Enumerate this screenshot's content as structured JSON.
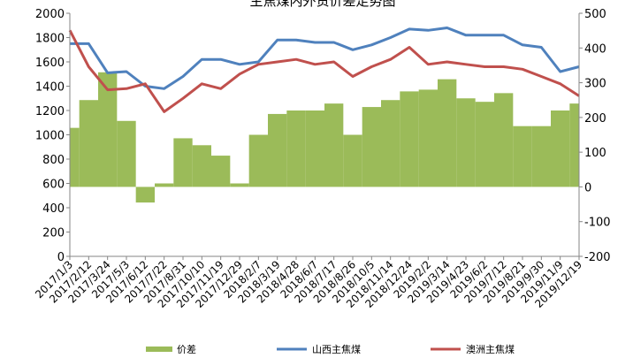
{
  "chart_data": {
    "type": "bar+line",
    "title": "主焦煤内外贸价差走势图",
    "x": [
      "2017/1/3",
      "2017/2/12",
      "2017/3/24",
      "2017/5/3",
      "2017/6/12",
      "2017/7/22",
      "2017/8/31",
      "2017/10/10",
      "2017/11/19",
      "2017/12/29",
      "2018/2/7",
      "2018/3/19",
      "2018/4/28",
      "2018/6/7",
      "2018/7/17",
      "2018/8/26",
      "2018/10/5",
      "2018/11/14",
      "2018/12/24",
      "2019/2/2",
      "2019/3/14",
      "2019/4/23",
      "2019/6/2",
      "2019/7/12",
      "2019/8/21",
      "2019/9/30",
      "2019/11/9",
      "2019/12/19"
    ],
    "y_left_lim": [
      0,
      2000
    ],
    "y_left_ticks": [
      "0",
      "200",
      "400",
      "600",
      "800",
      "1000",
      "1200",
      "1400",
      "1600",
      "1800",
      "2000"
    ],
    "y_right_lim": [
      -200,
      500
    ],
    "y_right_ticks": [
      "-200",
      "-100",
      "0",
      "100",
      "200",
      "300",
      "400",
      "500"
    ],
    "grid": false,
    "legend_position": "bottom",
    "colors": {
      "diff": "#9bbb59",
      "shanxi": "#4f81bd",
      "aus": "#c0504d"
    },
    "series": [
      {
        "name": "价差",
        "axis": "right",
        "kind": "bar",
        "values": [
          170,
          250,
          330,
          190,
          -45,
          10,
          140,
          120,
          90,
          10,
          150,
          210,
          220,
          220,
          240,
          150,
          230,
          250,
          275,
          280,
          310,
          255,
          245,
          270,
          175,
          175,
          220,
          240
        ]
      },
      {
        "name": "山西主焦煤",
        "axis": "left",
        "kind": "line",
        "values": [
          1750,
          1750,
          1510,
          1520,
          1400,
          1380,
          1480,
          1620,
          1620,
          1580,
          1600,
          1780,
          1780,
          1760,
          1760,
          1700,
          1740,
          1800,
          1870,
          1860,
          1880,
          1820,
          1820,
          1820,
          1740,
          1720,
          1520,
          1560
        ]
      },
      {
        "name": "澳洲主焦煤",
        "axis": "left",
        "kind": "line",
        "values": [
          1860,
          1560,
          1370,
          1380,
          1420,
          1190,
          1300,
          1420,
          1380,
          1500,
          1580,
          1600,
          1620,
          1580,
          1600,
          1480,
          1560,
          1620,
          1720,
          1580,
          1600,
          1580,
          1560,
          1560,
          1540,
          1480,
          1420,
          1320
        ]
      }
    ]
  }
}
